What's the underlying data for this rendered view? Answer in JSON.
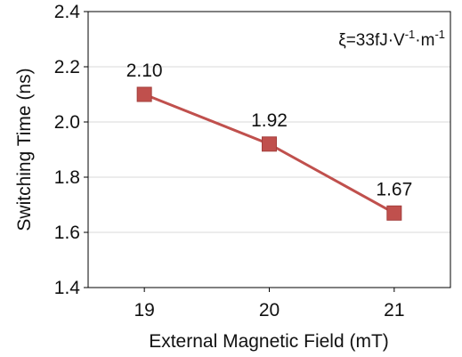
{
  "chart_data": {
    "type": "line",
    "title": "",
    "xlabel": "External Magnetic Field (mT)",
    "ylabel": "Switching Time (ns)",
    "x": [
      19,
      20,
      21
    ],
    "xticks": [
      "19",
      "20",
      "21"
    ],
    "yticks": [
      "1.4",
      "1.6",
      "1.8",
      "2.0",
      "2.2",
      "2.4"
    ],
    "ylim": [
      1.4,
      2.4
    ],
    "grid": true,
    "series": [
      {
        "name": "",
        "values": [
          2.1,
          1.92,
          1.67
        ],
        "labels": [
          "2.10",
          "1.92",
          "1.67"
        ],
        "color": "#c0504d",
        "marker": "square"
      }
    ],
    "annotation": {
      "text_main": "ξ=33fJ·V",
      "sup1": "-1",
      "text_mid": "·m",
      "sup2": "-1"
    }
  }
}
